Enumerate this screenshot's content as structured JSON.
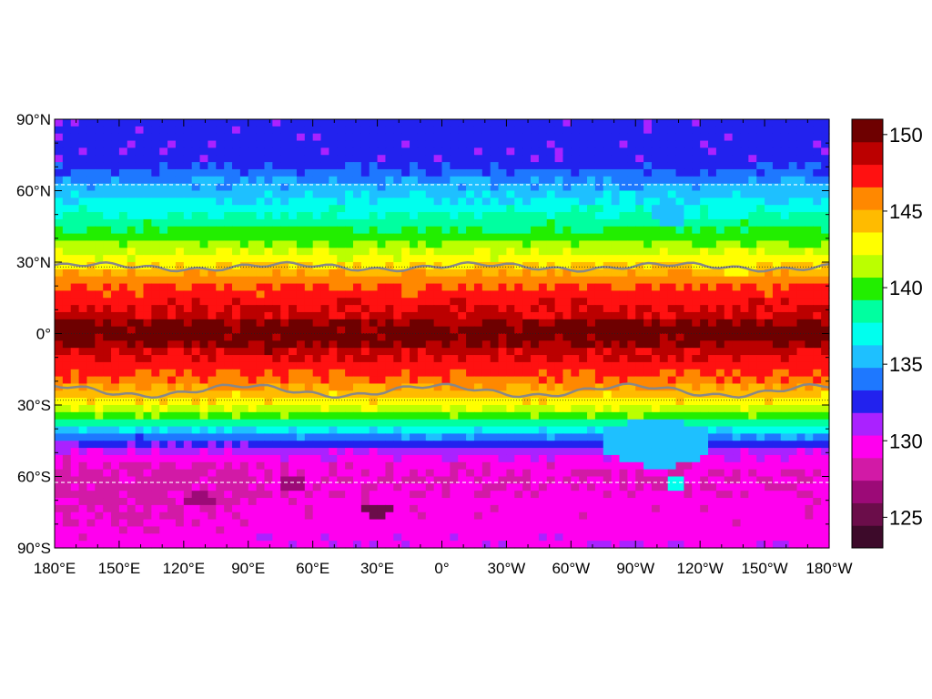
{
  "chart_data": {
    "type": "heatmap",
    "title": "",
    "xlabel": "",
    "ylabel": "",
    "x_range": [
      180,
      -180
    ],
    "y_range": [
      -90,
      90
    ],
    "x_ticks": [
      {
        "lon": 180,
        "label": "180°E"
      },
      {
        "lon": 150,
        "label": "150°E"
      },
      {
        "lon": 120,
        "label": "120°E"
      },
      {
        "lon": 90,
        "label": "90°E"
      },
      {
        "lon": 60,
        "label": "60°E"
      },
      {
        "lon": 30,
        "label": "30°E"
      },
      {
        "lon": 0,
        "label": "0°"
      },
      {
        "lon": -30,
        "label": "30°W"
      },
      {
        "lon": -60,
        "label": "60°W"
      },
      {
        "lon": -90,
        "label": "90°W"
      },
      {
        "lon": -120,
        "label": "120°W"
      },
      {
        "lon": -150,
        "label": "150°W"
      },
      {
        "lon": -180,
        "label": "180°W"
      }
    ],
    "y_ticks": [
      {
        "lat": 90,
        "label": "90°N"
      },
      {
        "lat": 60,
        "label": "60°N"
      },
      {
        "lat": 30,
        "label": "30°N"
      },
      {
        "lat": 0,
        "label": "0°"
      },
      {
        "lat": -30,
        "label": "30°S"
      },
      {
        "lat": -60,
        "label": "60°S"
      },
      {
        "lat": -90,
        "label": "90°S"
      }
    ],
    "colorbar": {
      "min": 123,
      "max": 151,
      "tick_labels": [
        "150",
        "145",
        "140",
        "135",
        "130",
        "125"
      ],
      "tick_values": [
        150,
        145,
        140,
        135,
        130,
        125
      ],
      "levels": [
        {
          "from": 123,
          "to": 124.6,
          "color": "#3d0a2a"
        },
        {
          "from": 124.6,
          "to": 126.2,
          "color": "#6b0d4a"
        },
        {
          "from": 126.2,
          "to": 127.9,
          "color": "#9c0a77"
        },
        {
          "from": 127.9,
          "to": 129.5,
          "color": "#d21aa6"
        },
        {
          "from": 129.5,
          "to": 131.2,
          "color": "#ff00ee"
        },
        {
          "from": 131.2,
          "to": 132.9,
          "color": "#aa22ff"
        },
        {
          "from": 132.9,
          "to": 134.5,
          "color": "#2222ee"
        },
        {
          "from": 134.5,
          "to": 136.2,
          "color": "#1e78ff"
        },
        {
          "from": 136.2,
          "to": 137.9,
          "color": "#1ec0ff"
        },
        {
          "from": 137.9,
          "to": 139.5,
          "color": "#00ffee"
        },
        {
          "from": 139.5,
          "to": 141.2,
          "color": "#00ffa0"
        },
        {
          "from": 141.2,
          "to": 142.9,
          "color": "#22ee00"
        },
        {
          "from": 142.9,
          "to": 144.5,
          "color": "#bbff00"
        },
        {
          "from": 144.5,
          "to": 146.2,
          "color": "#ffff00"
        },
        {
          "from": 146.2,
          "to": 147.9,
          "color": "#ffbb00"
        },
        {
          "from": 147.9,
          "to": 149.5,
          "color": "#ff8800"
        },
        {
          "from": 149.5,
          "to": 151,
          "color": "#ff1111"
        }
      ],
      "extra_levels": [
        {
          "color": "#bb0000"
        },
        {
          "color": "#6e0000"
        }
      ]
    },
    "latitude_profile": [
      {
        "lat": 90,
        "value": 133.5
      },
      {
        "lat": 72,
        "value": 133.5
      },
      {
        "lat": 66,
        "value": 135.5
      },
      {
        "lat": 60,
        "value": 137
      },
      {
        "lat": 53,
        "value": 138.8
      },
      {
        "lat": 47,
        "value": 140.5
      },
      {
        "lat": 41,
        "value": 142
      },
      {
        "lat": 35,
        "value": 144
      },
      {
        "lat": 30,
        "value": 145.5
      },
      {
        "lat": 27,
        "value": 147
      },
      {
        "lat": 22,
        "value": 149
      },
      {
        "lat": 16,
        "value": 150.2
      },
      {
        "lat": 8,
        "value": 151.2
      },
      {
        "lat": 3,
        "value": 152.4
      },
      {
        "lat": 0,
        "value": 152.8
      },
      {
        "lat": -3,
        "value": 152.4
      },
      {
        "lat": -8,
        "value": 151.2
      },
      {
        "lat": -14,
        "value": 150.2
      },
      {
        "lat": -20,
        "value": 149
      },
      {
        "lat": -25,
        "value": 147
      },
      {
        "lat": -30,
        "value": 145
      },
      {
        "lat": -35,
        "value": 142
      },
      {
        "lat": -40,
        "value": 138.5
      },
      {
        "lat": -45,
        "value": 134.5
      },
      {
        "lat": -50,
        "value": 131.5
      },
      {
        "lat": -55,
        "value": 130
      },
      {
        "lat": -62,
        "value": 129.5
      },
      {
        "lat": -70,
        "value": 130
      },
      {
        "lat": -80,
        "value": 130.2
      },
      {
        "lat": -90,
        "value": 131
      }
    ],
    "anomalies": [
      {
        "lon_center": -100,
        "lat_center": -46,
        "lon_width": 50,
        "lat_width": 20,
        "value": 137
      },
      {
        "lon_center": -106,
        "lat_center": 50,
        "lon_width": 16,
        "lat_width": 12,
        "value": 137.5
      },
      {
        "lon_center": -137,
        "lat_center": 30,
        "lon_width": 20,
        "lat_width": 10,
        "value": 146
      },
      {
        "lon_center": -108,
        "lat_center": -63,
        "lon_width": 10,
        "lat_width": 4,
        "value": 139
      },
      {
        "lon_center": 113,
        "lat_center": -70,
        "lon_width": 14,
        "lat_width": 6,
        "value": 127
      },
      {
        "lon_center": 140,
        "lat_center": -67,
        "lon_width": 16,
        "lat_width": 8,
        "value": 128.5
      },
      {
        "lon_center": 70,
        "lat_center": -63,
        "lon_width": 14,
        "lat_width": 6,
        "value": 127.5
      },
      {
        "lon_center": 30,
        "lat_center": -74,
        "lon_width": 14,
        "lat_width": 6,
        "value": 126
      }
    ],
    "contour_north_lat": 28,
    "contour_south_lat": -24,
    "contour_color": "#888888",
    "dashed_latitudes": [
      62.5,
      -62.5
    ],
    "dotted_latitudes": [
      28,
      0,
      -28
    ]
  }
}
